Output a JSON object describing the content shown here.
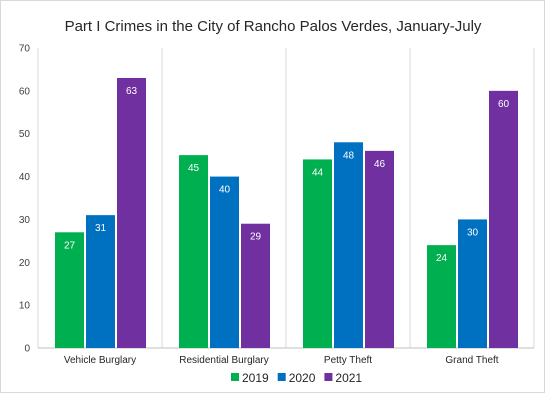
{
  "chart_data": {
    "type": "bar",
    "title": "Part I Crimes in the City of Rancho Palos Verdes, January-July",
    "categories": [
      "Vehicle Burglary",
      "Residential Burglary",
      "Petty Theft",
      "Grand Theft"
    ],
    "series": [
      {
        "name": "2019",
        "values": [
          27,
          45,
          44,
          24
        ],
        "color": "#00b050"
      },
      {
        "name": "2020",
        "values": [
          31,
          40,
          48,
          30
        ],
        "color": "#0070c0"
      },
      {
        "name": "2021",
        "values": [
          63,
          29,
          46,
          60
        ],
        "color": "#7030a0"
      }
    ],
    "ylim": [
      0,
      70
    ],
    "yticks": [
      0,
      10,
      20,
      30,
      40,
      50,
      60,
      70
    ],
    "grid": "vertical category separators",
    "legend": "bottom-center",
    "data_labels": true
  }
}
